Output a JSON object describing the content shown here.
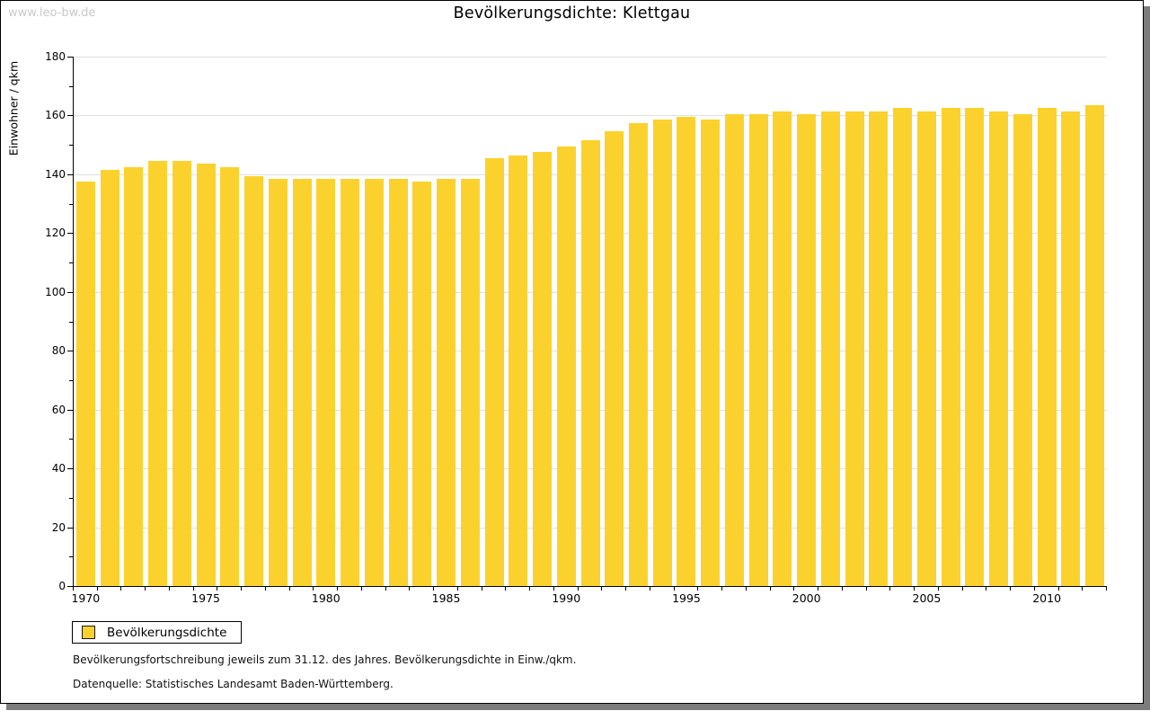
{
  "watermark": "www.leo-bw.de",
  "header": {
    "title": "Bevölkerungsdichte: Klettgau"
  },
  "legend": {
    "label": "Bevölkerungsdichte",
    "swatch_color": "#fbd22d"
  },
  "footnotes": {
    "line1": "Bevölkerungsfortschreibung jeweils zum 31.12. des Jahres. Bevölkerungsdichte in Einw./qkm.",
    "line2": "Datenquelle: Statistisches Landesamt Baden-Württemberg."
  },
  "colors": {
    "bar": "#fbd22d",
    "grid": "#e0e0e0",
    "axis": "#000000",
    "watermark": "#c9c9c9",
    "frame_shadow": "#7c7c7c"
  },
  "chart_data": {
    "type": "bar",
    "title": "Bevölkerungsdichte: Klettgau",
    "xlabel": "",
    "ylabel": "Einwohner / qkm",
    "ylim": [
      0,
      180
    ],
    "y_tick_step": 20,
    "y_minor_tick_step": 10,
    "x_label_every": 5,
    "grid": true,
    "legend_position": "bottom-left",
    "legend_entries": [
      "Bevölkerungsdichte"
    ],
    "categories": [
      1970,
      1971,
      1972,
      1973,
      1974,
      1975,
      1976,
      1977,
      1978,
      1979,
      1980,
      1981,
      1982,
      1983,
      1984,
      1985,
      1986,
      1987,
      1988,
      1989,
      1990,
      1991,
      1992,
      1993,
      1994,
      1995,
      1996,
      1997,
      1998,
      1999,
      2000,
      2001,
      2002,
      2003,
      2004,
      2005,
      2006,
      2007,
      2008,
      2009,
      2010,
      2011,
      2012
    ],
    "values": [
      137.5,
      141.5,
      142.5,
      144.5,
      144.5,
      143.5,
      142.5,
      139.5,
      138.5,
      138.5,
      138.5,
      138.5,
      138.5,
      138.5,
      137.5,
      138.5,
      138.5,
      145.5,
      146.5,
      147.5,
      149.5,
      151.5,
      154.5,
      157.5,
      158.5,
      159.5,
      158.5,
      160.5,
      160.5,
      161.5,
      160.5,
      161.5,
      161.5,
      161.5,
      162.5,
      161.5,
      162.5,
      162.5,
      161.5,
      160.5,
      162.5,
      161.5,
      163.5
    ]
  }
}
